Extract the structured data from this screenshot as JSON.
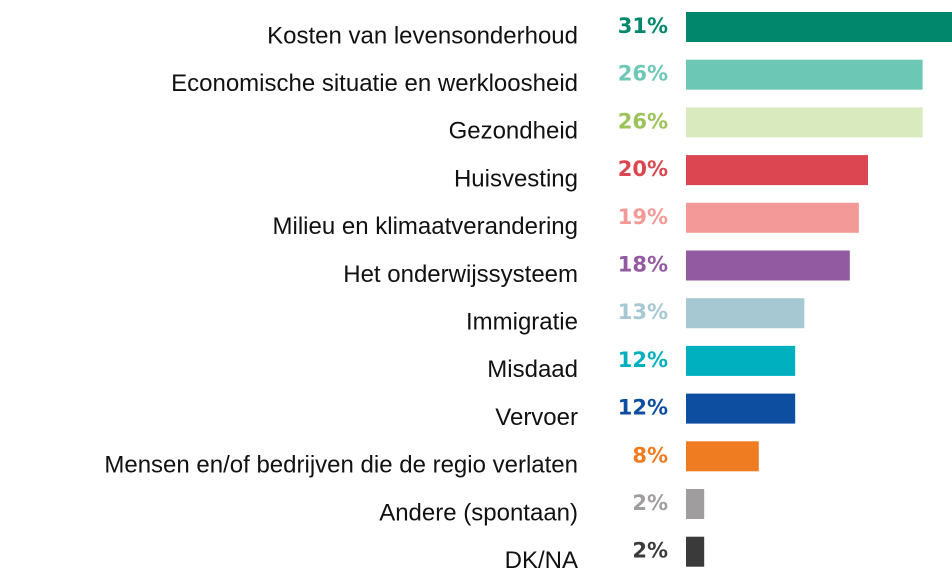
{
  "chart_data": {
    "type": "barh",
    "categories": [
      "Kosten van levensonderhoud",
      "Economische situatie en werkloosheid",
      "Gezondheid",
      "Huisvesting",
      "Milieu en klimaatverandering",
      "Het onderwijssysteem",
      "Immigratie",
      "Misdaad",
      "Vervoer",
      "Mensen en/of bedrijven die de regio verlaten",
      "Andere (spontaan)",
      "DK/NA"
    ],
    "values": [
      31,
      26,
      26,
      20,
      19,
      18,
      13,
      12,
      12,
      8,
      2,
      2
    ],
    "value_labels": [
      "31%",
      "26%",
      "26%",
      "20%",
      "19%",
      "18%",
      "13%",
      "12%",
      "12%",
      "8%",
      "2%",
      "2%"
    ],
    "colors": [
      "#00876c",
      "#6cc7b4",
      "#d9eabf",
      "#dc4650",
      "#f39a98",
      "#925aa0",
      "#a6c8d2",
      "#00b0bf",
      "#0d4ea0",
      "#f07c22",
      "#a09d9e",
      "#3a3a3a"
    ],
    "value_label_colors": [
      "#00876c",
      "#6cc7b4",
      "#9bc35a",
      "#dc4650",
      "#f39a98",
      "#925aa0",
      "#a6c8d2",
      "#00b0bf",
      "#0d4ea0",
      "#f07c22",
      "#a09d9e",
      "#3a3a3a"
    ]
  }
}
